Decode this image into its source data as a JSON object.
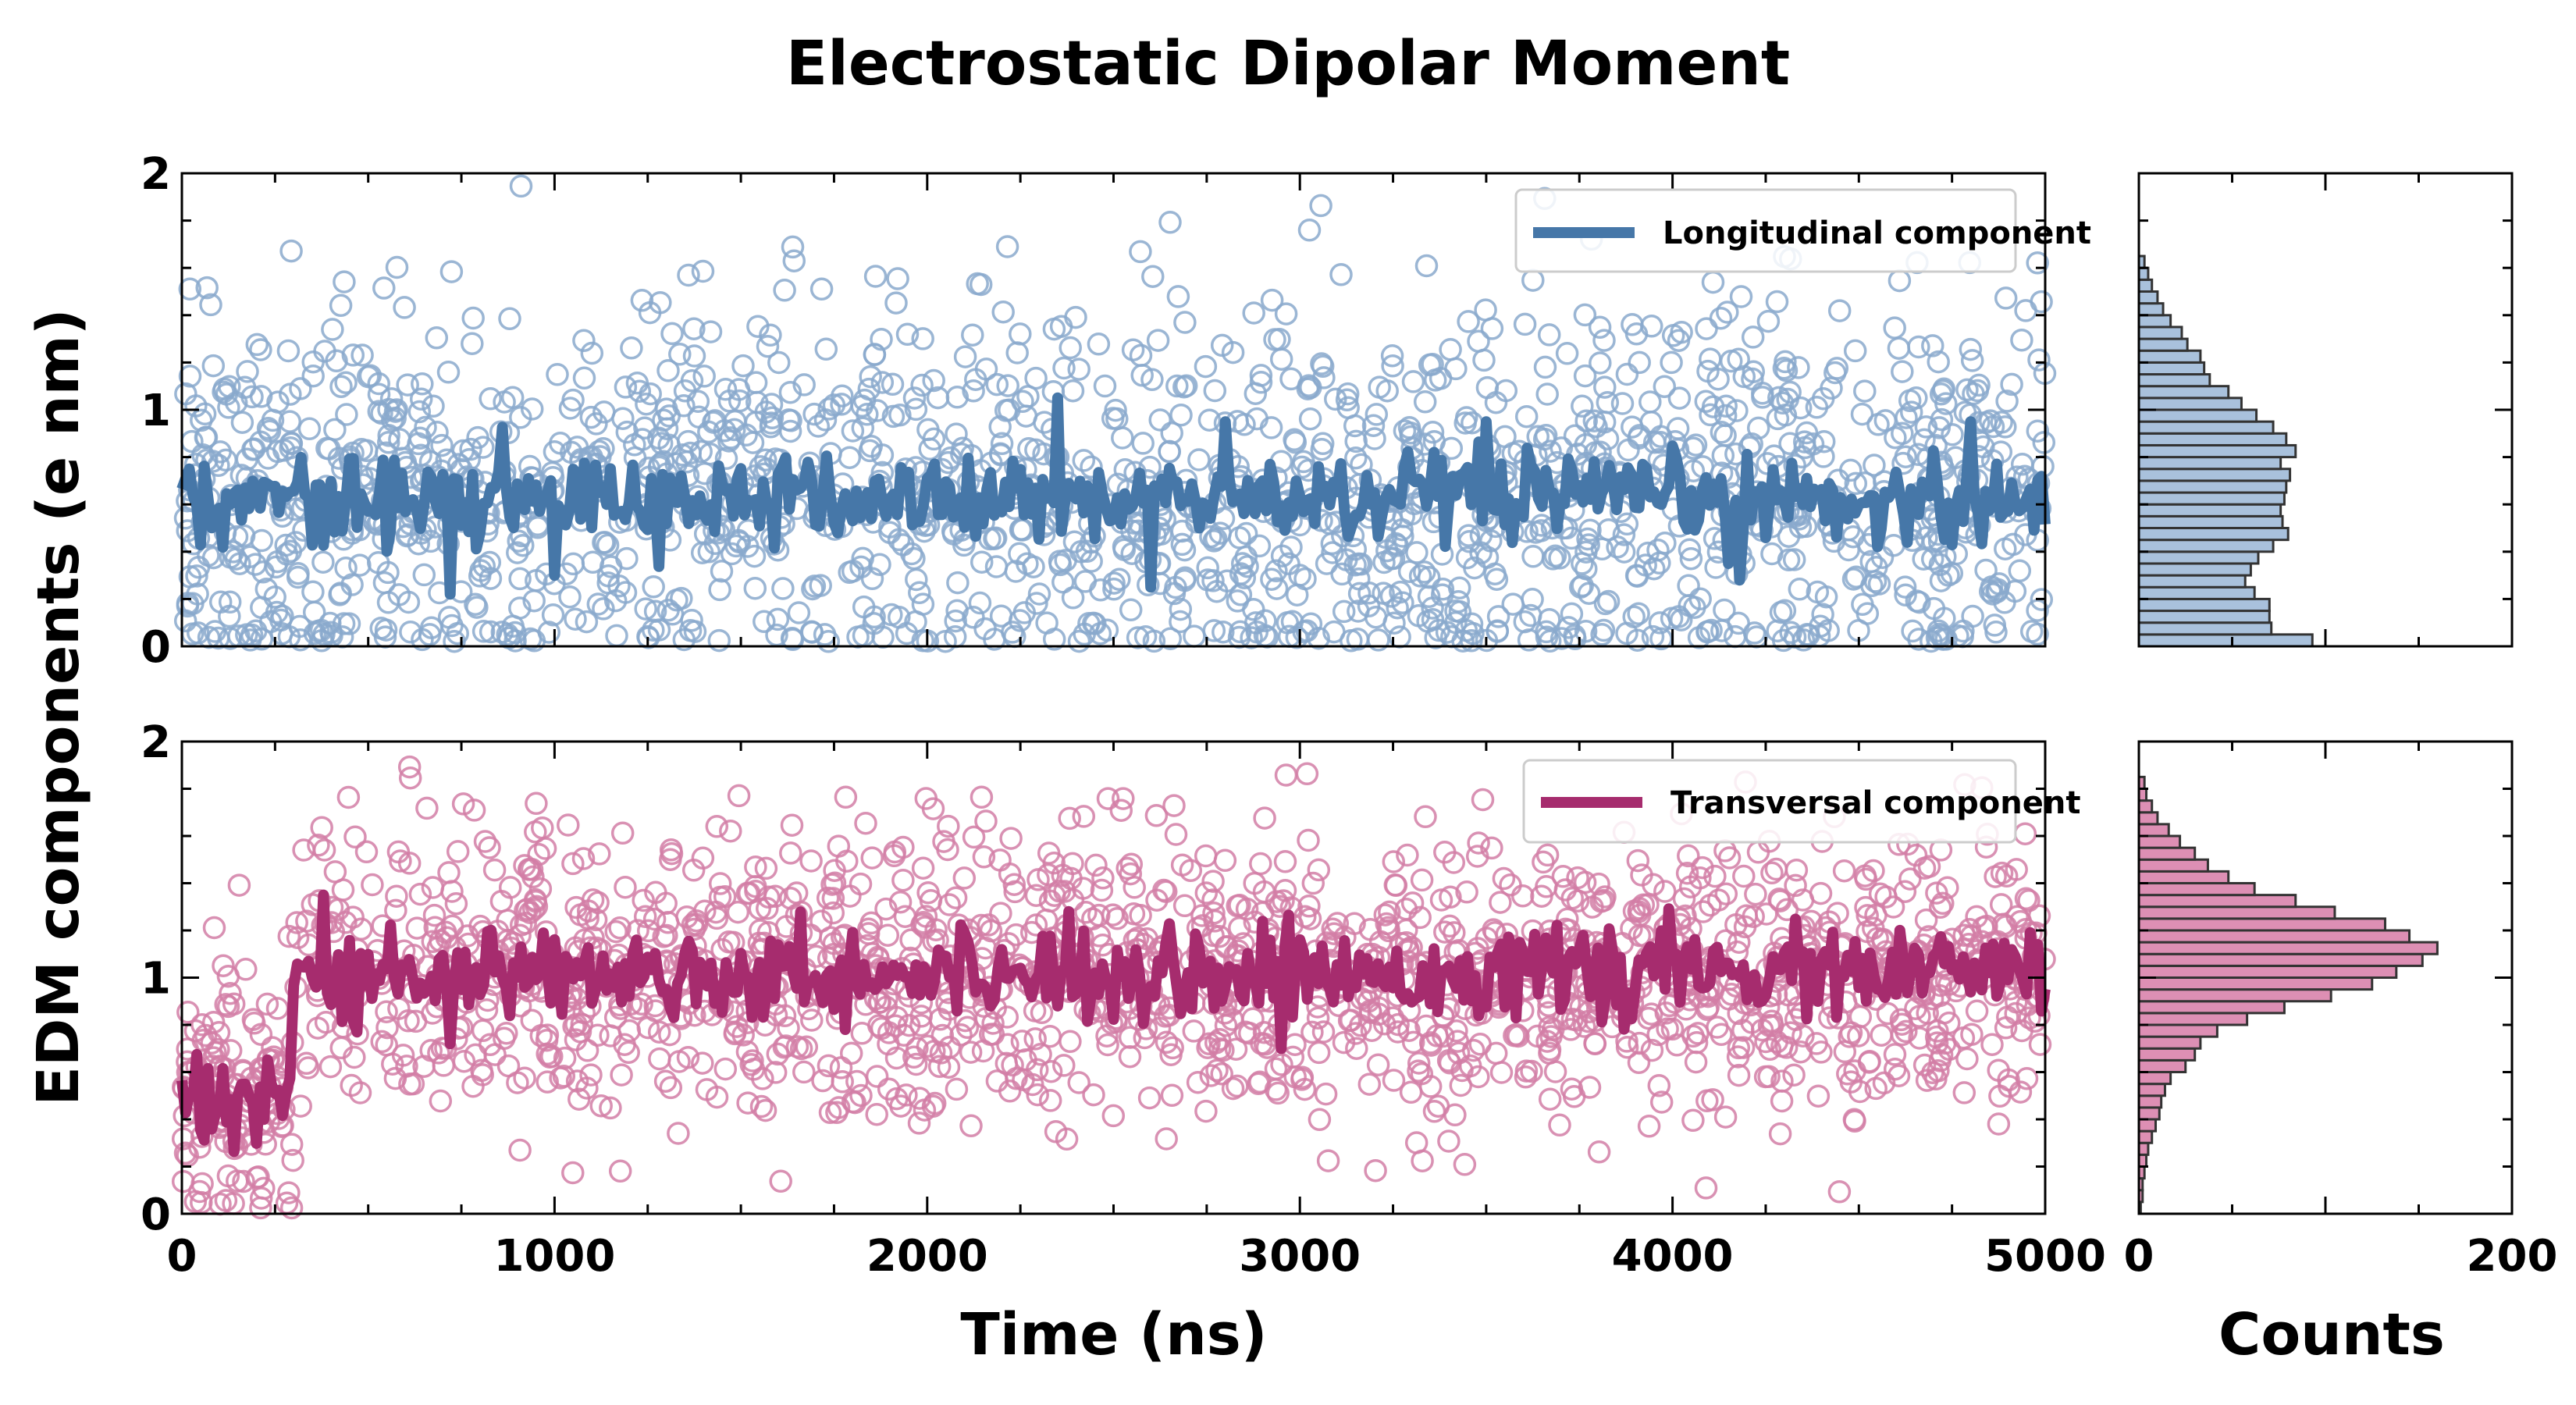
{
  "chart_data": {
    "title": "Electrostatic Dipolar Moment",
    "ylabel": "EDM components (e nm)",
    "xlabel_main": "Time (ns)",
    "xlabel_hist": "Counts",
    "xlim": [
      0,
      5000
    ],
    "ylim": [
      0,
      2
    ],
    "hist_xlim": [
      0,
      200
    ],
    "x_ticks": [
      "0",
      "1000",
      "2000",
      "3000",
      "4000",
      "5000"
    ],
    "hist_x_ticks": [
      "0",
      "200"
    ],
    "y_ticks": [
      "0",
      "1",
      "2"
    ],
    "panels": [
      {
        "type": "scatter+line",
        "series_name": "Longitudinal component",
        "color": "#4677a8",
        "marker_color": "#8aa9cc",
        "hist_fill": "#a9c1dc",
        "legend_position": "top-right",
        "scatter_points": 1700,
        "mean": 0.62,
        "spread": 0.42,
        "running_average": {
          "x_range": [
            0,
            5000
          ],
          "step": 10,
          "level": 0.62,
          "dips": [
            {
              "x": 720,
              "y": 0.22
            },
            {
              "x": 1000,
              "y": 0.3
            },
            {
              "x": 2600,
              "y": 0.25
            },
            {
              "x": 4180,
              "y": 0.28
            }
          ],
          "peaks": [
            {
              "x": 2350,
              "y": 1.05
            },
            {
              "x": 2800,
              "y": 0.95
            },
            {
              "x": 3500,
              "y": 0.95
            },
            {
              "x": 4800,
              "y": 0.95
            }
          ]
        },
        "histogram": {
          "bin_edges": [
            0,
            0.05,
            0.1,
            0.15,
            0.2,
            0.25,
            0.3,
            0.35,
            0.4,
            0.45,
            0.5,
            0.55,
            0.6,
            0.65,
            0.7,
            0.75,
            0.8,
            0.85,
            0.9,
            0.95,
            1.0,
            1.05,
            1.1,
            1.15,
            1.2,
            1.25,
            1.3,
            1.35,
            1.4,
            1.45,
            1.5,
            1.55,
            1.6,
            1.65
          ],
          "counts": [
            93,
            71,
            70,
            70,
            62,
            57,
            60,
            64,
            72,
            80,
            77,
            76,
            78,
            79,
            81,
            76,
            84,
            79,
            72,
            63,
            55,
            48,
            38,
            35,
            33,
            26,
            23,
            17,
            13,
            10,
            7,
            5,
            3
          ]
        }
      },
      {
        "type": "scatter+line",
        "series_name": "Transversal component",
        "color": "#a62c6e",
        "marker_color": "#d27ea6",
        "hist_fill": "#dd8fb4",
        "legend_position": "top-right",
        "scatter_points": 1700,
        "mean": 1.02,
        "spread": 0.3,
        "running_average": {
          "x_range": [
            0,
            5000
          ],
          "step": 10,
          "level": 1.02,
          "early_segment": {
            "x_end": 300,
            "y": 0.5
          },
          "dips": [
            {
              "x": 720,
              "y": 0.72
            },
            {
              "x": 1780,
              "y": 0.78
            },
            {
              "x": 2950,
              "y": 0.7
            }
          ],
          "peaks": [
            {
              "x": 380,
              "y": 1.35
            },
            {
              "x": 2380,
              "y": 1.28
            }
          ]
        },
        "histogram": {
          "bin_edges": [
            0,
            0.05,
            0.1,
            0.15,
            0.2,
            0.25,
            0.3,
            0.35,
            0.4,
            0.45,
            0.5,
            0.55,
            0.6,
            0.65,
            0.7,
            0.75,
            0.8,
            0.85,
            0.9,
            0.95,
            1.0,
            1.05,
            1.1,
            1.15,
            1.2,
            1.25,
            1.3,
            1.35,
            1.4,
            1.45,
            1.5,
            1.55,
            1.6,
            1.65,
            1.7,
            1.75,
            1.8,
            1.85
          ],
          "counts": [
            1,
            2,
            2,
            3,
            4,
            5,
            7,
            9,
            11,
            12,
            14,
            17,
            25,
            30,
            33,
            42,
            58,
            78,
            103,
            125,
            138,
            152,
            160,
            145,
            132,
            105,
            84,
            62,
            48,
            37,
            30,
            22,
            16,
            10,
            7,
            4,
            3
          ]
        }
      }
    ]
  }
}
